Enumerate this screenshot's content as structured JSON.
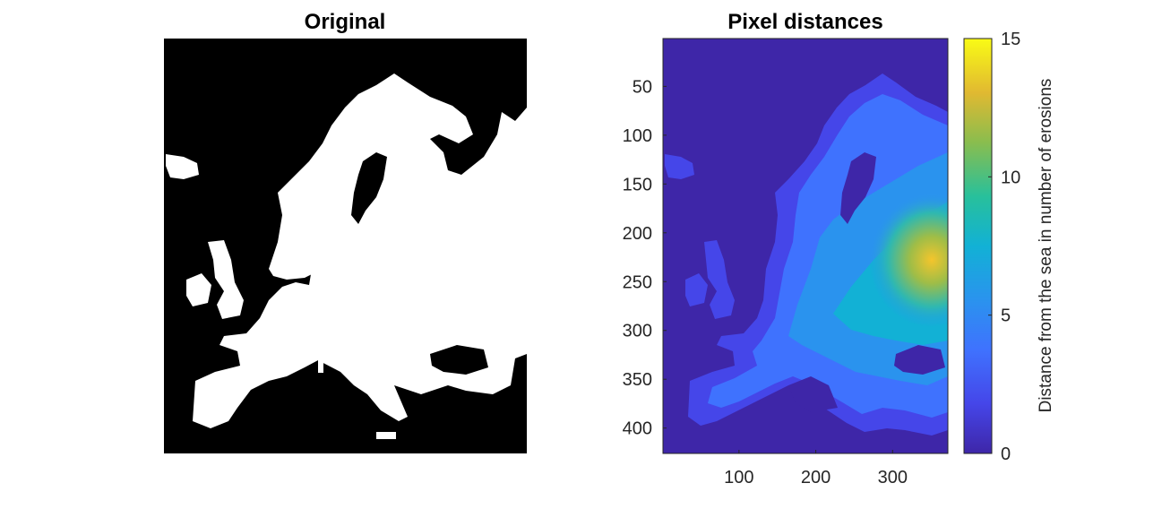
{
  "chart_data": [
    {
      "type": "image",
      "title": "Original",
      "description_colors": {
        "land": "#ffffff",
        "sea": "#000000"
      }
    },
    {
      "type": "heatmap",
      "title": "Pixel distances",
      "xlabel": "",
      "ylabel": "",
      "x_ticks": [
        100,
        200,
        300
      ],
      "y_ticks": [
        50,
        100,
        150,
        200,
        250,
        300,
        350,
        400
      ],
      "xlim": [
        1,
        372
      ],
      "ylim": [
        1,
        426
      ],
      "colormap": "parula",
      "colorbar": {
        "label": "Distance from the sea in number of erosions",
        "ticks": [
          0,
          5,
          10,
          15
        ],
        "range": [
          0,
          15
        ]
      }
    }
  ],
  "colors": {
    "parula_low": "#3e26a8",
    "parula_mid": "#17b9b4",
    "parula_high": "#f9fb15"
  }
}
